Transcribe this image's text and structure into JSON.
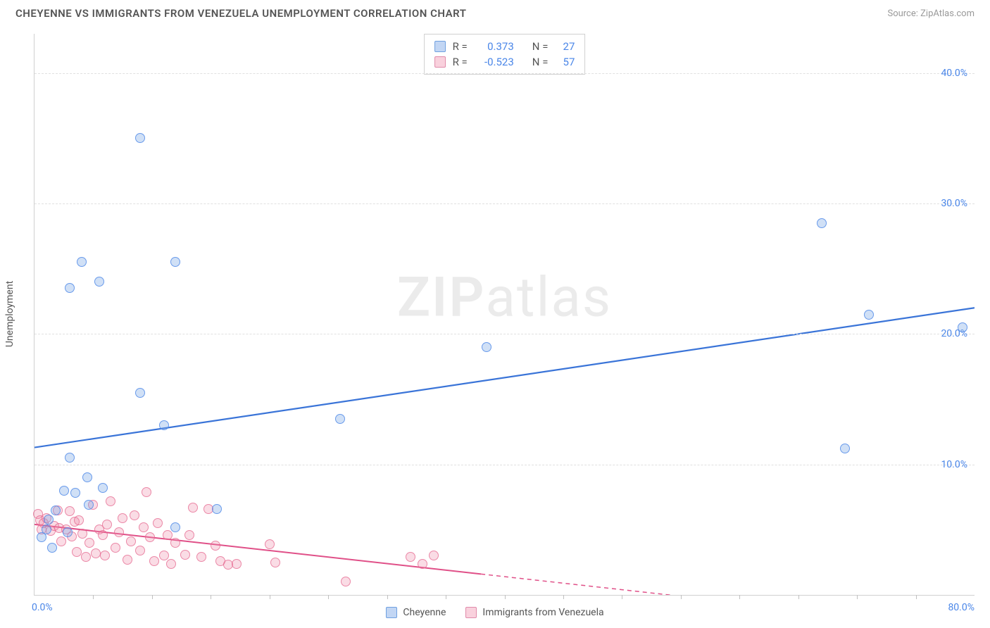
{
  "title": "CHEYENNE VS IMMIGRANTS FROM VENEZUELA UNEMPLOYMENT CORRELATION CHART",
  "source": "Source: ZipAtlas.com",
  "watermark": {
    "bold": "ZIP",
    "light": "atlas"
  },
  "y_axis_title": "Unemployment",
  "chart": {
    "type": "scatter",
    "xlim": [
      0,
      80
    ],
    "ylim": [
      0,
      43
    ],
    "x_ticks": [
      0,
      80
    ],
    "x_tick_labels": [
      "0.0%",
      "80.0%"
    ],
    "x_minor_ticks": [
      5,
      10,
      15,
      20,
      25,
      30,
      35,
      40,
      45,
      50,
      55,
      60,
      65,
      70,
      75
    ],
    "y_ticks": [
      10,
      20,
      30,
      40
    ],
    "y_tick_labels": [
      "10.0%",
      "20.0%",
      "30.0%",
      "40.0%"
    ],
    "grid_color": "#e0e0e0",
    "background_color": "#ffffff",
    "axis_color": "#d0d0d0",
    "tick_label_color": "#4a86e8",
    "series": [
      {
        "name": "Cheyenne",
        "color_fill": "rgba(120,165,230,0.35)",
        "color_stroke": "rgba(74,134,232,0.78)",
        "marker_size": 14,
        "trend": {
          "x1": 0,
          "y1": 11.3,
          "x2": 80,
          "y2": 22.0,
          "color": "#3a74d8",
          "width": 2.2,
          "dash": "none"
        },
        "stats": {
          "R": "0.373",
          "N": "27"
        },
        "points": [
          [
            9.0,
            35.0
          ],
          [
            4.0,
            25.5
          ],
          [
            5.5,
            24.0
          ],
          [
            3.0,
            23.5
          ],
          [
            12.0,
            25.5
          ],
          [
            67.0,
            28.5
          ],
          [
            71.0,
            21.5
          ],
          [
            79.0,
            20.5
          ],
          [
            69.0,
            11.2
          ],
          [
            38.5,
            19.0
          ],
          [
            9.0,
            15.5
          ],
          [
            26.0,
            13.5
          ],
          [
            11.0,
            13.0
          ],
          [
            3.0,
            10.5
          ],
          [
            4.5,
            9.0
          ],
          [
            3.5,
            7.8
          ],
          [
            5.8,
            8.2
          ],
          [
            2.5,
            8.0
          ],
          [
            4.6,
            6.9
          ],
          [
            1.8,
            6.5
          ],
          [
            1.2,
            5.8
          ],
          [
            15.5,
            6.6
          ],
          [
            12.0,
            5.2
          ],
          [
            1.0,
            5.0
          ],
          [
            2.8,
            4.8
          ],
          [
            0.6,
            4.4
          ],
          [
            1.5,
            3.6
          ]
        ]
      },
      {
        "name": "Immigrants from Venezuela",
        "color_fill": "rgba(240,140,170,0.30)",
        "color_stroke": "rgba(230,100,140,0.70)",
        "marker_size": 14,
        "trend": {
          "x1": 0,
          "y1": 5.4,
          "x2": 38,
          "y2": 1.6,
          "color": "#e05088",
          "width": 2.0,
          "dash": "none",
          "dash_ext": {
            "x1": 38,
            "y1": 1.6,
            "x2": 58,
            "y2": -0.4
          }
        },
        "stats": {
          "R": "-0.523",
          "N": "57"
        },
        "points": [
          [
            0.3,
            6.2
          ],
          [
            0.5,
            5.7
          ],
          [
            0.6,
            5.0
          ],
          [
            0.8,
            5.5
          ],
          [
            1.0,
            5.9
          ],
          [
            1.4,
            4.9
          ],
          [
            1.7,
            5.3
          ],
          [
            2.0,
            6.5
          ],
          [
            2.1,
            5.1
          ],
          [
            2.3,
            4.1
          ],
          [
            2.7,
            5.0
          ],
          [
            3.0,
            6.4
          ],
          [
            3.2,
            4.5
          ],
          [
            3.4,
            5.6
          ],
          [
            3.6,
            3.3
          ],
          [
            3.8,
            5.7
          ],
          [
            4.1,
            4.7
          ],
          [
            4.4,
            2.9
          ],
          [
            4.7,
            4.0
          ],
          [
            5.0,
            6.9
          ],
          [
            5.2,
            3.2
          ],
          [
            5.5,
            5.0
          ],
          [
            5.8,
            4.6
          ],
          [
            6.0,
            3.0
          ],
          [
            6.2,
            5.4
          ],
          [
            6.5,
            7.2
          ],
          [
            6.9,
            3.6
          ],
          [
            7.2,
            4.8
          ],
          [
            7.5,
            5.9
          ],
          [
            7.9,
            2.7
          ],
          [
            8.2,
            4.1
          ],
          [
            8.5,
            6.1
          ],
          [
            9.0,
            3.4
          ],
          [
            9.3,
            5.2
          ],
          [
            9.5,
            7.9
          ],
          [
            9.8,
            4.4
          ],
          [
            10.2,
            2.6
          ],
          [
            10.5,
            5.5
          ],
          [
            11.0,
            3.0
          ],
          [
            11.3,
            4.6
          ],
          [
            11.6,
            2.4
          ],
          [
            12.0,
            4.0
          ],
          [
            12.8,
            3.1
          ],
          [
            13.2,
            4.6
          ],
          [
            13.5,
            6.7
          ],
          [
            14.2,
            2.9
          ],
          [
            14.8,
            6.6
          ],
          [
            15.4,
            3.8
          ],
          [
            15.8,
            2.6
          ],
          [
            16.5,
            2.3
          ],
          [
            17.2,
            2.4
          ],
          [
            20.0,
            3.9
          ],
          [
            20.5,
            2.5
          ],
          [
            26.5,
            1.0
          ],
          [
            32.0,
            2.9
          ],
          [
            33.0,
            2.4
          ],
          [
            34.0,
            3.0
          ]
        ]
      }
    ]
  },
  "legend_top": {
    "rows": [
      {
        "series": 0,
        "R_label": "R =",
        "N_label": "N ="
      },
      {
        "series": 1,
        "R_label": "R =",
        "N_label": "N ="
      }
    ]
  },
  "legend_bottom": {
    "items": [
      {
        "series": 0,
        "label": "Cheyenne"
      },
      {
        "series": 1,
        "label": "Immigrants from Venezuela"
      }
    ]
  }
}
